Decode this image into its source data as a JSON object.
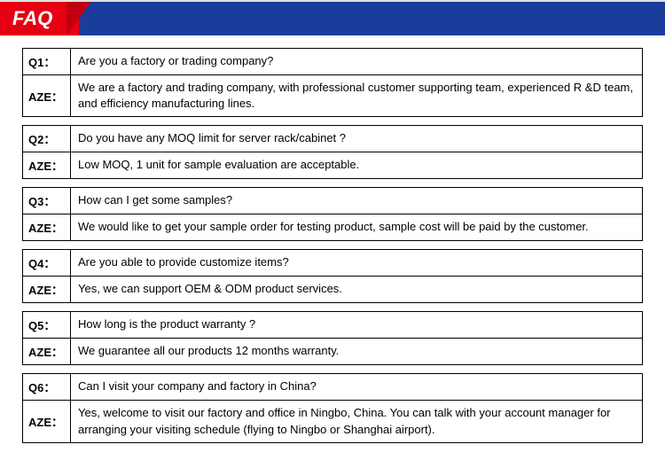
{
  "header": {
    "title": "FAQ",
    "red_bg": "#e60012",
    "tri_bg": "#c00010",
    "blue_bg": "#1a3d9c"
  },
  "faqs": [
    {
      "q_label": "Q1：",
      "q_text": "Are you a factory or trading company?",
      "a_label": "AZE：",
      "a_text": " We are a factory and trading company, with professional customer supporting team, experienced R &D team, and efficiency manufacturing lines."
    },
    {
      "q_label": "Q2：",
      "q_text": "Do you have any MOQ limit for server rack/cabinet ?",
      "a_label": "AZE：",
      "a_text": " Low MOQ, 1 unit for sample evaluation are acceptable."
    },
    {
      "q_label": "Q3：",
      "q_text": "How can I get some samples?",
      "a_label": "AZE：",
      "a_text": " We would like to get your sample order for testing product, sample cost will be paid by the customer."
    },
    {
      "q_label": "Q4：",
      "q_text": "Are you able to provide customize items?",
      "a_label": "AZE：",
      "a_text": " Yes, we can support OEM & ODM product services."
    },
    {
      "q_label": "Q5：",
      "q_text": "How long is the product warranty ?",
      "a_label": "AZE：",
      "a_text": " We guarantee all our products 12 months warranty."
    },
    {
      "q_label": "Q6：",
      "q_text": "Can I visit your company and factory in China?",
      "a_label": "AZE：",
      "a_text": " Yes, welcome to visit our factory and office in Ningbo, China. You can talk with your account manager for arranging your visiting schedule (flying to Ningbo or Shanghai airport)."
    }
  ]
}
